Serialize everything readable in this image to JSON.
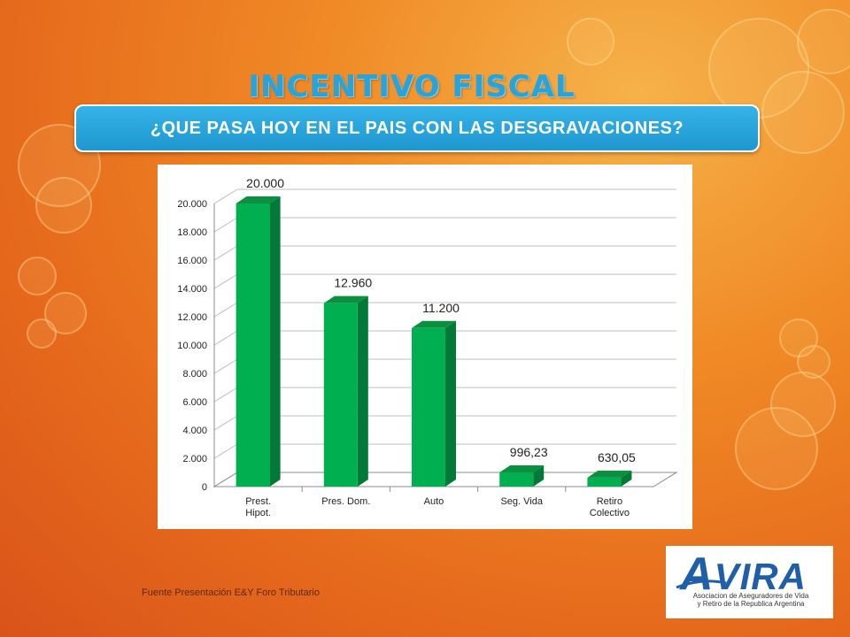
{
  "slide": {
    "title": "INCENTIVO FISCAL",
    "banner": "¿QUE PASA HOY EN EL PAIS CON LAS DESGRAVACIONES?",
    "source": "Fuente Presentación E&Y Foro Tributario"
  },
  "logo": {
    "initial": "A",
    "rest": "VIRA",
    "subtitle_line1": "Asociacion de Aseguradores de Vida",
    "subtitle_line2": "y Retiro de la Republica Argentina",
    "color": "#1f5ea8"
  },
  "colors": {
    "bar": "#00b050",
    "bar_side": "#007a36",
    "bar_top": "#0c8f3f",
    "banner": "#2aa6dd",
    "title": "#2aa3d8"
  },
  "chart_data": {
    "type": "bar",
    "categories": [
      "Prest. Hipot.",
      "Pres. Dom.",
      "Auto",
      "Seg. Vida",
      "Retiro Colectivo"
    ],
    "values": [
      20000,
      12960,
      11200,
      996.23,
      630.05
    ],
    "data_labels": [
      "20.000",
      "12.960",
      "11.200",
      "996,23",
      "630,05"
    ],
    "yticks": [
      0,
      2000,
      4000,
      6000,
      8000,
      10000,
      12000,
      14000,
      16000,
      18000,
      20000
    ],
    "ytick_labels": [
      "0",
      "2.000",
      "4.000",
      "6.000",
      "8.000",
      "10.000",
      "12.000",
      "14.000",
      "16.000",
      "18.000",
      "20.000"
    ],
    "ylim": [
      0,
      20000
    ],
    "grid": true,
    "style": "3d"
  }
}
